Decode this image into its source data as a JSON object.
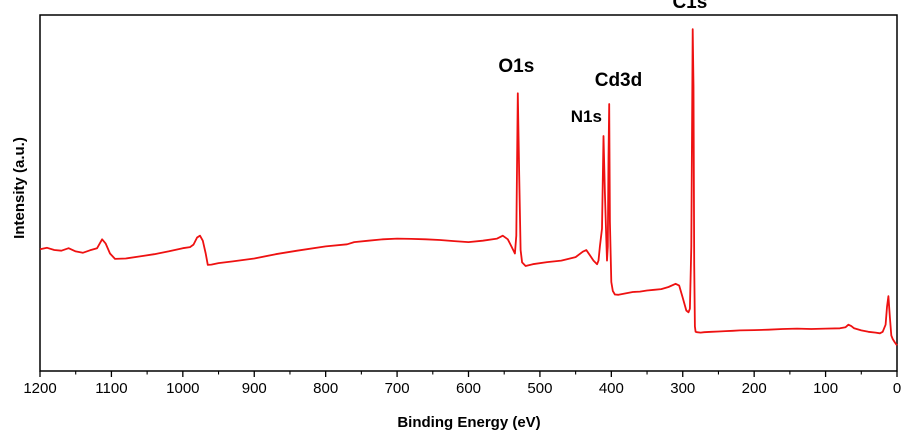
{
  "chart_data": {
    "type": "line",
    "title": "",
    "xlabel": "Binding Energy (eV)",
    "ylabel": "Intensity (a.u.)",
    "xlim": [
      1200,
      0
    ],
    "ylim": [
      0,
      100
    ],
    "x_reversed": true,
    "x_ticks": [
      1200,
      1100,
      1000,
      900,
      800,
      700,
      600,
      500,
      400,
      300,
      200,
      100,
      0
    ],
    "x_tick_labels": [
      "1200",
      "1100",
      "1000",
      "900",
      "800",
      "700",
      "600",
      "500",
      "400",
      "300",
      "200",
      "100",
      "0"
    ],
    "y_ticks_visible": false,
    "grid": false,
    "color": "#ee1111",
    "series": [
      {
        "x": [
          1200,
          1190,
          1180,
          1170,
          1160,
          1150,
          1140,
          1130,
          1120,
          1113,
          1108,
          1102,
          1095,
          1080,
          1060,
          1040,
          1020,
          1000,
          990,
          985,
          980,
          976,
          972,
          968,
          965,
          960,
          950,
          930,
          900,
          870,
          840,
          800,
          770,
          760,
          740,
          720,
          700,
          680,
          660,
          640,
          620,
          600,
          580,
          560,
          552,
          545,
          540,
          535,
          533,
          531,
          529,
          527,
          525,
          520,
          510,
          490,
          470,
          450,
          440,
          435,
          430,
          425,
          420,
          418,
          416,
          413,
          411,
          409,
          407,
          406,
          405,
          404,
          403,
          402,
          400,
          398,
          395,
          390,
          380,
          370,
          360,
          350,
          340,
          330,
          320,
          310,
          305,
          300,
          295,
          292,
          290,
          288,
          286,
          285,
          284,
          283,
          282,
          280,
          275,
          270,
          260,
          250,
          240,
          230,
          220,
          200,
          180,
          160,
          140,
          120,
          100,
          80,
          72,
          68,
          64,
          60,
          50,
          40,
          30,
          24,
          20,
          16,
          14,
          12,
          10,
          8,
          6,
          3,
          0
        ],
        "y": [
          34.2,
          34.6,
          34.0,
          33.8,
          34.5,
          33.6,
          33.2,
          33.9,
          34.5,
          37.0,
          35.8,
          33.0,
          31.5,
          31.6,
          32.2,
          32.8,
          33.6,
          34.5,
          34.8,
          35.5,
          37.5,
          38.0,
          36.6,
          33.0,
          29.8,
          29.9,
          30.3,
          30.8,
          31.6,
          32.8,
          33.8,
          35.0,
          35.6,
          36.2,
          36.6,
          37.0,
          37.2,
          37.1,
          37.0,
          36.8,
          36.5,
          36.2,
          36.6,
          37.2,
          38.0,
          37.0,
          35.0,
          33.0,
          38.0,
          78.0,
          55.0,
          34.0,
          30.5,
          29.5,
          30.0,
          30.6,
          31.0,
          32.0,
          33.5,
          34.0,
          32.5,
          31.0,
          30.0,
          31.0,
          35.0,
          40.0,
          66.0,
          50.0,
          37.0,
          31.0,
          35.0,
          60.0,
          75.0,
          42.0,
          25.0,
          22.5,
          21.5,
          21.4,
          21.8,
          22.2,
          22.3,
          22.6,
          22.8,
          23.0,
          23.6,
          24.5,
          24.0,
          20.5,
          17.0,
          16.5,
          17.5,
          35.0,
          96.0,
          80.0,
          30.0,
          12.5,
          11.0,
          10.9,
          10.8,
          10.9,
          11.0,
          11.1,
          11.2,
          11.3,
          11.4,
          11.5,
          11.6,
          11.8,
          11.9,
          11.8,
          11.9,
          12.0,
          12.3,
          13.0,
          12.6,
          12.0,
          11.4,
          11.0,
          10.8,
          10.6,
          11.0,
          13.0,
          18.0,
          21.0,
          15.0,
          10.0,
          9.0,
          8.0,
          7.2
        ]
      }
    ],
    "annotations": [
      {
        "text": "O1s",
        "x": 533,
        "y": 84,
        "size": 19
      },
      {
        "text": "N1s",
        "x": 435,
        "y": 70,
        "size": 17
      },
      {
        "text": "Cd3d",
        "x": 390,
        "y": 80,
        "size": 19
      },
      {
        "text": "C1s",
        "x": 290,
        "y": 102,
        "size": 19
      }
    ]
  }
}
